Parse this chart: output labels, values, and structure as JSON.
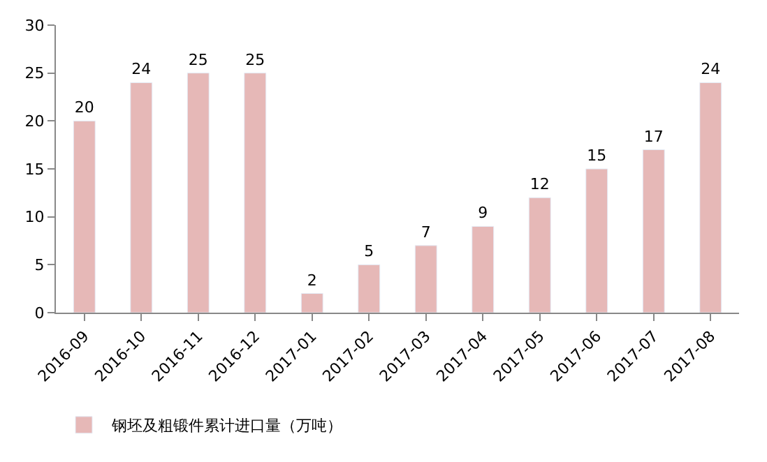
{
  "chart_data": {
    "type": "bar",
    "categories": [
      "2016-09",
      "2016-10",
      "2016-11",
      "2016-12",
      "2017-01",
      "2017-02",
      "2017-03",
      "2017-04",
      "2017-05",
      "2017-06",
      "2017-07",
      "2017-08"
    ],
    "series": [
      {
        "name": "钢坯及粗锻件累计进口量（万吨）",
        "color": "#e6b8b7",
        "values": [
          20,
          24,
          25,
          25,
          2,
          5,
          7,
          9,
          12,
          15,
          17,
          24
        ]
      }
    ],
    "ylim": [
      0,
      30
    ],
    "yticks": [
      0,
      5,
      10,
      15,
      20,
      25,
      30
    ],
    "legend": "bottom left",
    "data_labels": true
  }
}
